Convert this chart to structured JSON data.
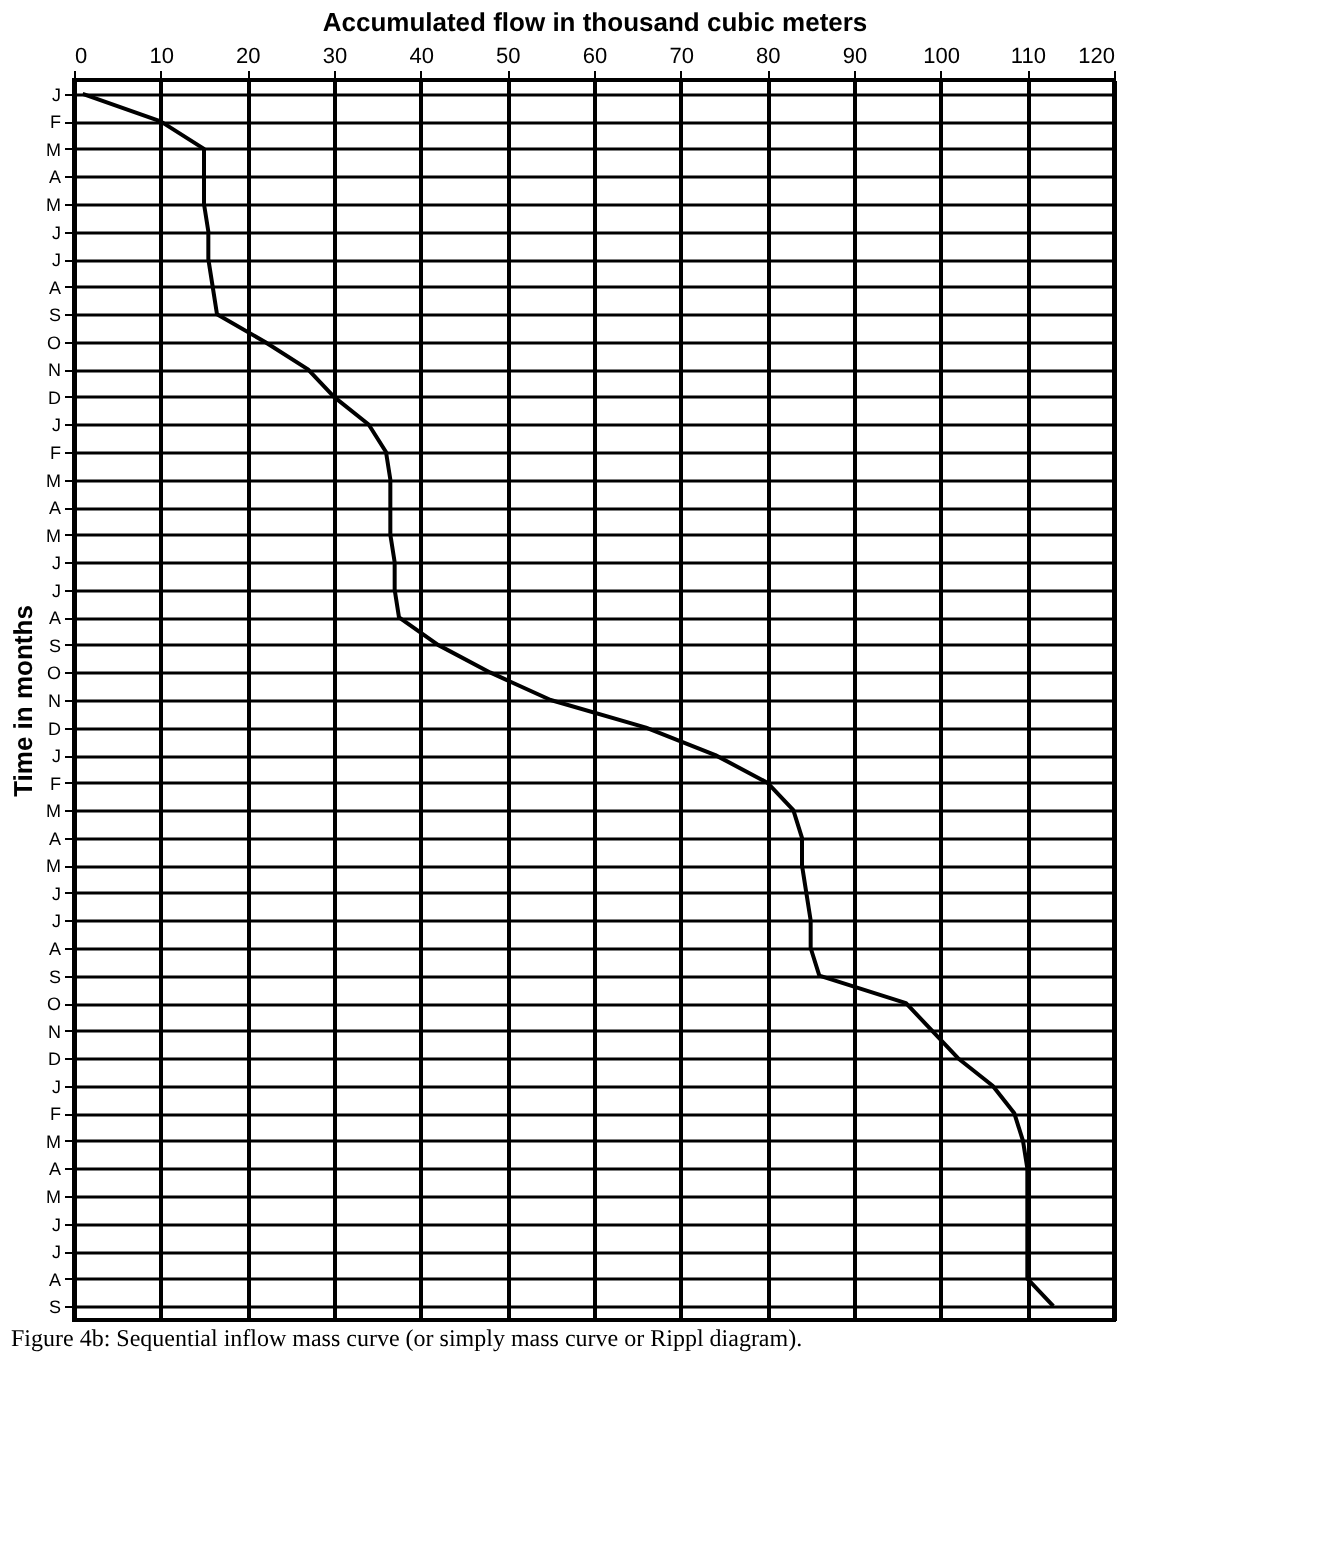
{
  "chart_data": {
    "type": "line",
    "xlabel": "Accumulated flow in thousand cubic meters",
    "ylabel": "Time in months",
    "annotations": [
      "Figure 4b: Sequential inflow mass curve (or simply mass curve or Rippl diagram)."
    ],
    "categories": [
      "J",
      "F",
      "M",
      "A",
      "M",
      "J",
      "J",
      "A",
      "S",
      "O",
      "N",
      "D",
      "J",
      "F",
      "M",
      "A",
      "M",
      "J",
      "J",
      "A",
      "S",
      "O",
      "N",
      "D",
      "J",
      "F",
      "M",
      "A",
      "M",
      "J",
      "J",
      "A",
      "S",
      "O",
      "N",
      "D",
      "J",
      "F",
      "M",
      "A",
      "M",
      "J",
      "J",
      "A",
      "S"
    ],
    "series": [
      {
        "color": "#000000",
        "values": [
          1,
          10,
          15,
          15,
          15,
          15.5,
          15.5,
          16,
          16.5,
          22,
          27,
          30,
          34,
          36,
          36.5,
          36.5,
          36.5,
          37,
          37,
          37.5,
          42,
          48,
          55,
          66,
          74,
          80,
          83,
          84,
          84,
          84.5,
          85,
          85,
          86,
          96,
          99,
          102,
          106,
          108.5,
          109.5,
          110,
          110,
          110,
          110,
          110,
          113
        ]
      }
    ],
    "xlim": [
      0,
      120
    ],
    "xticks": [
      0,
      10,
      20,
      30,
      40,
      50,
      60,
      70,
      80,
      90,
      100,
      110,
      120
    ],
    "orientation": "horizontal",
    "grid": true,
    "marker": "none",
    "line_style": "solid"
  }
}
